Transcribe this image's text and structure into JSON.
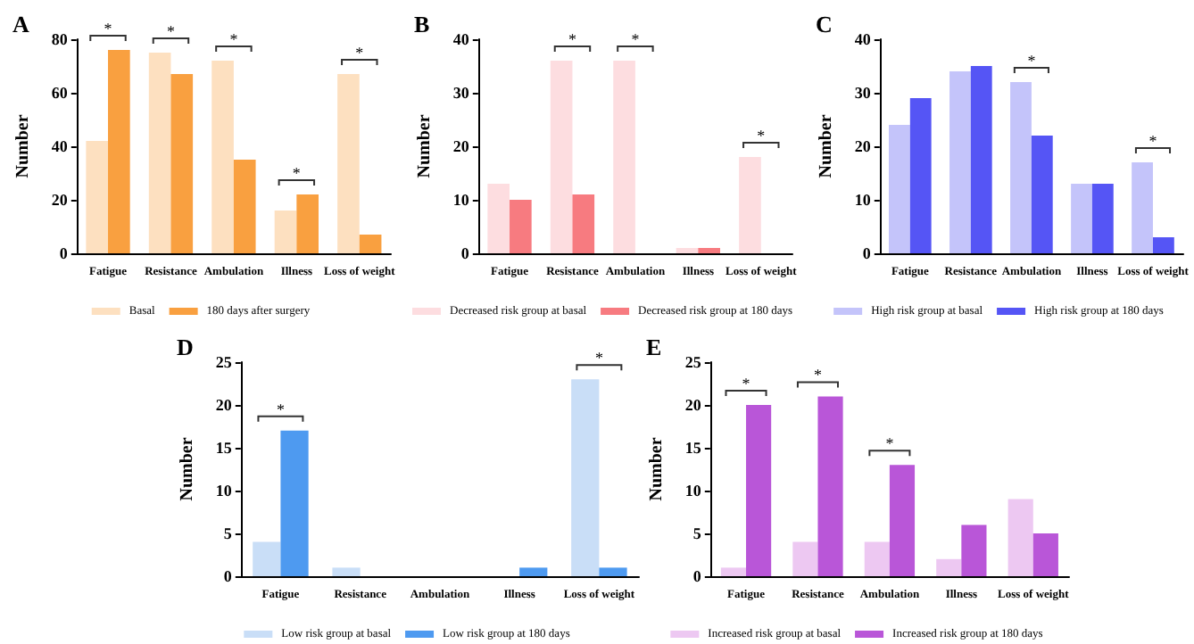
{
  "chart_data": [
    {
      "type": "bar",
      "title": "A",
      "ylabel": "Number",
      "categories": [
        "Fatigue",
        "Resistance",
        "Ambulation",
        "Illness",
        "Loss of weight"
      ],
      "ylim": [
        0,
        80
      ],
      "yticks": [
        0,
        20,
        40,
        60,
        80
      ],
      "legend": "bottom",
      "series": [
        {
          "name": "Basal",
          "color": "#fde0c0",
          "values": [
            42,
            75,
            72,
            16,
            67
          ]
        },
        {
          "name": "180 days after surgery",
          "color": "#f9a040",
          "values": [
            76,
            67,
            35,
            22,
            7
          ]
        }
      ],
      "annotations": [
        {
          "text": "*",
          "x": "Fatigue",
          "y": 76
        },
        {
          "text": "*",
          "x": "Resistance",
          "y": 75
        },
        {
          "text": "*",
          "x": "Ambulation",
          "y": 72
        },
        {
          "text": "*",
          "x": "Illness",
          "y": 22
        },
        {
          "text": "*",
          "x": "Loss of weight",
          "y": 67
        }
      ]
    },
    {
      "type": "bar",
      "title": "B",
      "ylabel": "Number",
      "categories": [
        "Fatigue",
        "Resistance",
        "Ambulation",
        "Illness",
        "Loss of weight"
      ],
      "ylim": [
        0,
        40
      ],
      "yticks": [
        0,
        10,
        20,
        30,
        40
      ],
      "legend": "bottom",
      "series": [
        {
          "name": "Decreased risk group at basal",
          "color": "#fddde0",
          "values": [
            13,
            36,
            36,
            1,
            18
          ]
        },
        {
          "name": "Decreased risk group at 180 days",
          "color": "#f77b80",
          "values": [
            10,
            11,
            0,
            1,
            0
          ]
        }
      ],
      "annotations": [
        {
          "text": "*",
          "x": "Resistance",
          "y": 36
        },
        {
          "text": "*",
          "x": "Ambulation",
          "y": 36
        },
        {
          "text": "*",
          "x": "Loss of weight",
          "y": 18
        }
      ]
    },
    {
      "type": "bar",
      "title": "C",
      "ylabel": "Number",
      "categories": [
        "Fatigue",
        "Resistance",
        "Ambulation",
        "Illness",
        "Loss of weight"
      ],
      "ylim": [
        0,
        40
      ],
      "yticks": [
        0,
        10,
        20,
        30,
        40
      ],
      "legend": "bottom",
      "series": [
        {
          "name": "High risk group at basal",
          "color": "#c4c4fa",
          "values": [
            24,
            34,
            32,
            13,
            17
          ]
        },
        {
          "name": "High risk group at 180 days",
          "color": "#5555f5",
          "values": [
            29,
            35,
            22,
            13,
            3
          ]
        }
      ],
      "annotations": [
        {
          "text": "*",
          "x": "Ambulation",
          "y": 32
        },
        {
          "text": "*",
          "x": "Loss of weight",
          "y": 17
        }
      ]
    },
    {
      "type": "bar",
      "title": "D",
      "ylabel": "Number",
      "categories": [
        "Fatigue",
        "Resistance",
        "Ambulation",
        "Illness",
        "Loss of weight"
      ],
      "ylim": [
        0,
        25
      ],
      "yticks": [
        0,
        5,
        10,
        15,
        20,
        25
      ],
      "legend": "bottom",
      "series": [
        {
          "name": "Low risk group at basal",
          "color": "#c9def7",
          "values": [
            4,
            1,
            0,
            0,
            23
          ]
        },
        {
          "name": "Low risk group at 180 days",
          "color": "#4e9af0",
          "values": [
            17,
            0,
            0,
            1,
            1
          ]
        }
      ],
      "annotations": [
        {
          "text": "*",
          "x": "Fatigue",
          "y": 17
        },
        {
          "text": "*",
          "x": "Loss of weight",
          "y": 23
        }
      ]
    },
    {
      "type": "bar",
      "title": "E",
      "ylabel": "Number",
      "categories": [
        "Fatigue",
        "Resistance",
        "Ambulation",
        "Illness",
        "Loss of weight"
      ],
      "ylim": [
        0,
        25
      ],
      "yticks": [
        0,
        5,
        10,
        15,
        20,
        25
      ],
      "legend": "bottom",
      "series": [
        {
          "name": "Increased risk group at basal",
          "color": "#edc8f2",
          "values": [
            1,
            4,
            4,
            2,
            9
          ]
        },
        {
          "name": "Increased risk group at 180 days",
          "color": "#b956d8",
          "values": [
            20,
            21,
            13,
            6,
            5
          ]
        }
      ],
      "annotations": [
        {
          "text": "*",
          "x": "Fatigue",
          "y": 20
        },
        {
          "text": "*",
          "x": "Resistance",
          "y": 21
        },
        {
          "text": "*",
          "x": "Ambulation",
          "y": 13
        }
      ]
    }
  ]
}
